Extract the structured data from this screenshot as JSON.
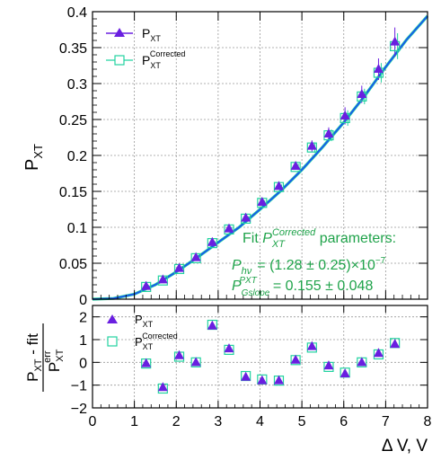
{
  "colors": {
    "purple": "#6a1fe0",
    "teal": "#22d3a0",
    "fit_blue": "#1a52f0",
    "fit_text": "#1fa34a",
    "frame": "#000000"
  },
  "chart_data": [
    {
      "type": "scatter",
      "panel": "top",
      "ylabel": "P",
      "ylabel_sub": "XT",
      "xlim": [
        0,
        8
      ],
      "ylim": [
        0,
        0.4
      ],
      "y_ticks": [
        "0",
        "0.05",
        "0.1",
        "0.15",
        "0.2",
        "0.25",
        "0.3",
        "0.35",
        "0.4"
      ],
      "grid": true,
      "legend": {
        "placement": "top-left",
        "entries": [
          {
            "label": "P",
            "sub": "XT",
            "sup": ""
          },
          {
            "label": "P",
            "sub": "XT",
            "sup": "Corrected"
          }
        ]
      },
      "series": [
        {
          "name": "P_XT",
          "marker": "triangle",
          "x": [
            1.28,
            1.68,
            2.07,
            2.47,
            2.86,
            3.26,
            3.66,
            4.05,
            4.45,
            4.85,
            5.24,
            5.64,
            6.03,
            6.43,
            6.83,
            7.22
          ],
          "y": [
            0.018,
            0.027,
            0.043,
            0.058,
            0.079,
            0.098,
            0.113,
            0.135,
            0.157,
            0.185,
            0.213,
            0.23,
            0.255,
            0.285,
            0.32,
            0.358
          ],
          "err": [
            0.003,
            0.003,
            0.003,
            0.003,
            0.003,
            0.004,
            0.004,
            0.004,
            0.004,
            0.005,
            0.008,
            0.009,
            0.012,
            0.012,
            0.015,
            0.02
          ]
        },
        {
          "name": "P_XT Corrected",
          "marker": "open-square",
          "x": [
            1.28,
            1.68,
            2.07,
            2.47,
            2.86,
            3.26,
            3.66,
            4.05,
            4.45,
            4.85,
            5.24,
            5.64,
            6.03,
            6.43,
            6.83,
            7.22
          ],
          "y": [
            0.017,
            0.026,
            0.042,
            0.057,
            0.078,
            0.097,
            0.112,
            0.134,
            0.156,
            0.184,
            0.211,
            0.228,
            0.252,
            0.282,
            0.315,
            0.352
          ]
        }
      ],
      "fit_curve": {
        "x": [
          0,
          0.5,
          1,
          1.5,
          2,
          2.5,
          3,
          3.5,
          4,
          4.5,
          5,
          5.5,
          6,
          6.5,
          7,
          7.5,
          8
        ],
        "y": [
          0,
          0.001,
          0.007,
          0.02,
          0.038,
          0.058,
          0.079,
          0.1,
          0.125,
          0.151,
          0.18,
          0.212,
          0.246,
          0.283,
          0.323,
          0.361,
          0.394
        ]
      },
      "annotation": {
        "title_prefix": "Fit ",
        "title_main": "P",
        "title_sub": "XT",
        "title_sup": "Corrected",
        "title_suffix": " parameters:",
        "line1_main": "P",
        "line1_sub": "hν",
        "line1_value": "= (1.28  ± 0.25)×10",
        "line1_exp": "−7",
        "line2_main": "P",
        "line2_sub": "Gslope",
        "line2_sup": "PXT",
        "line2_value": "= 0.155 ± 0.048"
      }
    },
    {
      "type": "scatter",
      "panel": "bottom",
      "ylabel_num": "P",
      "ylabel_num_sub": "XT",
      "ylabel_num_suffix": " - fit",
      "ylabel_den": "P",
      "ylabel_den_sub": "XT",
      "ylabel_den_sup": "err",
      "xlabel": "Δ V, V",
      "xlim": [
        0,
        8
      ],
      "ylim": [
        -2,
        2.5
      ],
      "x_ticks": [
        "0",
        "1",
        "2",
        "3",
        "4",
        "5",
        "6",
        "7",
        "8"
      ],
      "y_ticks": [
        "−2",
        "−1",
        "0",
        "1",
        "2"
      ],
      "grid": true,
      "legend": {
        "placement": "top-left",
        "entries": [
          {
            "label": "P",
            "sub": "XT",
            "sup": ""
          },
          {
            "label": "P",
            "sub": "XT",
            "sup": "Corrected"
          }
        ]
      },
      "series": [
        {
          "name": "P_XT residual",
          "marker": "triangle",
          "x": [
            1.28,
            1.68,
            2.07,
            2.47,
            2.86,
            3.26,
            3.66,
            4.05,
            4.45,
            4.85,
            5.24,
            5.64,
            6.03,
            6.43,
            6.83,
            7.22
          ],
          "y": [
            -0.05,
            -1.1,
            0.3,
            0.0,
            1.6,
            0.6,
            -0.65,
            -0.8,
            -0.8,
            0.1,
            0.7,
            -0.15,
            -0.5,
            0.0,
            0.4,
            0.8
          ]
        },
        {
          "name": "P_XT Corrected residual",
          "marker": "open-square",
          "x": [
            1.28,
            1.68,
            2.07,
            2.47,
            2.86,
            3.26,
            3.66,
            4.05,
            4.45,
            4.85,
            5.24,
            5.64,
            6.03,
            6.43,
            6.83,
            7.22
          ],
          "y": [
            -0.05,
            -1.15,
            0.25,
            0.0,
            1.65,
            0.55,
            -0.6,
            -0.75,
            -0.8,
            0.1,
            0.65,
            -0.2,
            -0.45,
            0.0,
            0.35,
            0.85
          ]
        }
      ]
    }
  ]
}
